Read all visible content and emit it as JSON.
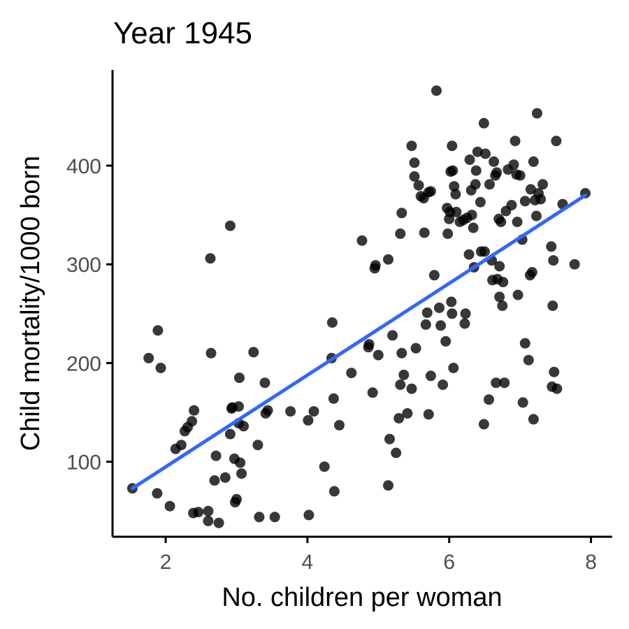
{
  "chart_data": {
    "type": "scatter",
    "title": "Year 1945",
    "xlabel": "No. children per woman",
    "ylabel": "Child mortality/1000 born",
    "xlim": [
      1.25,
      8.3
    ],
    "ylim": [
      24,
      497
    ],
    "x_ticks": [
      2,
      4,
      6,
      8
    ],
    "y_ticks": [
      100,
      200,
      300,
      400
    ],
    "grid": false,
    "legend": "none",
    "colors": {
      "points": "#000000",
      "trend": "#3366ff"
    },
    "trend_line": {
      "x": [
        1.53,
        7.92
      ],
      "y": [
        73,
        370
      ]
    },
    "points": [
      [
        1.53,
        73
      ],
      [
        1.76,
        205
      ],
      [
        1.88,
        68
      ],
      [
        1.89,
        233
      ],
      [
        1.93,
        195
      ],
      [
        2.06,
        55
      ],
      [
        2.14,
        113
      ],
      [
        2.22,
        117
      ],
      [
        2.27,
        131
      ],
      [
        2.31,
        135
      ],
      [
        2.37,
        141
      ],
      [
        2.4,
        152
      ],
      [
        2.39,
        48
      ],
      [
        2.46,
        49
      ],
      [
        2.6,
        50
      ],
      [
        2.6,
        40
      ],
      [
        2.63,
        306
      ],
      [
        2.64,
        210
      ],
      [
        2.69,
        81
      ],
      [
        2.71,
        106
      ],
      [
        2.75,
        38
      ],
      [
        2.84,
        84
      ],
      [
        2.91,
        339
      ],
      [
        2.91,
        128
      ],
      [
        2.93,
        154
      ],
      [
        2.94,
        155
      ],
      [
        2.97,
        103
      ],
      [
        2.98,
        59
      ],
      [
        3.0,
        62
      ],
      [
        3.03,
        156
      ],
      [
        3.03,
        139
      ],
      [
        3.04,
        185
      ],
      [
        3.05,
        99
      ],
      [
        3.07,
        88
      ],
      [
        3.1,
        136
      ],
      [
        3.24,
        211
      ],
      [
        3.3,
        117
      ],
      [
        3.32,
        44
      ],
      [
        3.4,
        180
      ],
      [
        3.41,
        149
      ],
      [
        3.44,
        152
      ],
      [
        3.54,
        44
      ],
      [
        3.76,
        151
      ],
      [
        4.01,
        142
      ],
      [
        4.02,
        46
      ],
      [
        4.09,
        151
      ],
      [
        4.24,
        95
      ],
      [
        4.34,
        205
      ],
      [
        4.35,
        241
      ],
      [
        4.37,
        164
      ],
      [
        4.38,
        70
      ],
      [
        4.45,
        137
      ],
      [
        4.62,
        190
      ],
      [
        4.77,
        324
      ],
      [
        4.86,
        216
      ],
      [
        4.87,
        219
      ],
      [
        4.92,
        170
      ],
      [
        4.95,
        296
      ],
      [
        4.96,
        299
      ],
      [
        5.0,
        208
      ],
      [
        5.14,
        305
      ],
      [
        5.14,
        76
      ],
      [
        5.16,
        123
      ],
      [
        5.2,
        228
      ],
      [
        5.25,
        109
      ],
      [
        5.29,
        144
      ],
      [
        5.31,
        178
      ],
      [
        5.31,
        331
      ],
      [
        5.33,
        210
      ],
      [
        5.33,
        352
      ],
      [
        5.36,
        188
      ],
      [
        5.41,
        149
      ],
      [
        5.47,
        420
      ],
      [
        5.47,
        174
      ],
      [
        5.51,
        403
      ],
      [
        5.51,
        389
      ],
      [
        5.53,
        215
      ],
      [
        5.57,
        380
      ],
      [
        5.6,
        369
      ],
      [
        5.64,
        367
      ],
      [
        5.65,
        332
      ],
      [
        5.67,
        239
      ],
      [
        5.69,
        251
      ],
      [
        5.71,
        148
      ],
      [
        5.71,
        373
      ],
      [
        5.74,
        374
      ],
      [
        5.74,
        187
      ],
      [
        5.79,
        289
      ],
      [
        5.82,
        476
      ],
      [
        5.86,
        256
      ],
      [
        5.88,
        238
      ],
      [
        5.91,
        178
      ],
      [
        5.95,
        222
      ],
      [
        5.97,
        357
      ],
      [
        5.98,
        331
      ],
      [
        6.0,
        346
      ],
      [
        6.01,
        353
      ],
      [
        6.02,
        394
      ],
      [
        6.03,
        262
      ],
      [
        6.04,
        420
      ],
      [
        6.04,
        250
      ],
      [
        6.05,
        395
      ],
      [
        6.06,
        195
      ],
      [
        6.07,
        379
      ],
      [
        6.09,
        371
      ],
      [
        6.1,
        353
      ],
      [
        6.15,
        343
      ],
      [
        6.2,
        345
      ],
      [
        6.22,
        240
      ],
      [
        6.23,
        250
      ],
      [
        6.25,
        347
      ],
      [
        6.28,
        310
      ],
      [
        6.29,
        406
      ],
      [
        6.31,
        375
      ],
      [
        6.32,
        350
      ],
      [
        6.34,
        337
      ],
      [
        6.35,
        297
      ],
      [
        6.37,
        381
      ],
      [
        6.38,
        395
      ],
      [
        6.4,
        414
      ],
      [
        6.44,
        363
      ],
      [
        6.45,
        313
      ],
      [
        6.49,
        443
      ],
      [
        6.49,
        138
      ],
      [
        6.5,
        313
      ],
      [
        6.51,
        412
      ],
      [
        6.56,
        163
      ],
      [
        6.57,
        381
      ],
      [
        6.6,
        304
      ],
      [
        6.61,
        284
      ],
      [
        6.63,
        404
      ],
      [
        6.65,
        390
      ],
      [
        6.66,
        180
      ],
      [
        6.67,
        393
      ],
      [
        6.68,
        285
      ],
      [
        6.7,
        346
      ],
      [
        6.71,
        298
      ],
      [
        6.71,
        267
      ],
      [
        6.73,
        343
      ],
      [
        6.75,
        258
      ],
      [
        6.76,
        282
      ],
      [
        6.78,
        180
      ],
      [
        6.8,
        354
      ],
      [
        6.83,
        396
      ],
      [
        6.88,
        360
      ],
      [
        6.91,
        401
      ],
      [
        6.93,
        425
      ],
      [
        6.95,
        391
      ],
      [
        6.96,
        343
      ],
      [
        6.97,
        269
      ],
      [
        7.0,
        390
      ],
      [
        7.03,
        325
      ],
      [
        7.04,
        160
      ],
      [
        7.07,
        364
      ],
      [
        7.07,
        220
      ],
      [
        7.12,
        203
      ],
      [
        7.14,
        289
      ],
      [
        7.15,
        376
      ],
      [
        7.17,
        292
      ],
      [
        7.19,
        404
      ],
      [
        7.19,
        143
      ],
      [
        7.21,
        365
      ],
      [
        7.23,
        349
      ],
      [
        7.24,
        453
      ],
      [
        7.26,
        372
      ],
      [
        7.29,
        366
      ],
      [
        7.32,
        381
      ],
      [
        7.44,
        318
      ],
      [
        7.45,
        176
      ],
      [
        7.46,
        258
      ],
      [
        7.47,
        304
      ],
      [
        7.48,
        191
      ],
      [
        7.51,
        425
      ],
      [
        7.52,
        174
      ],
      [
        7.6,
        361
      ],
      [
        7.77,
        300
      ],
      [
        7.92,
        372
      ]
    ]
  }
}
